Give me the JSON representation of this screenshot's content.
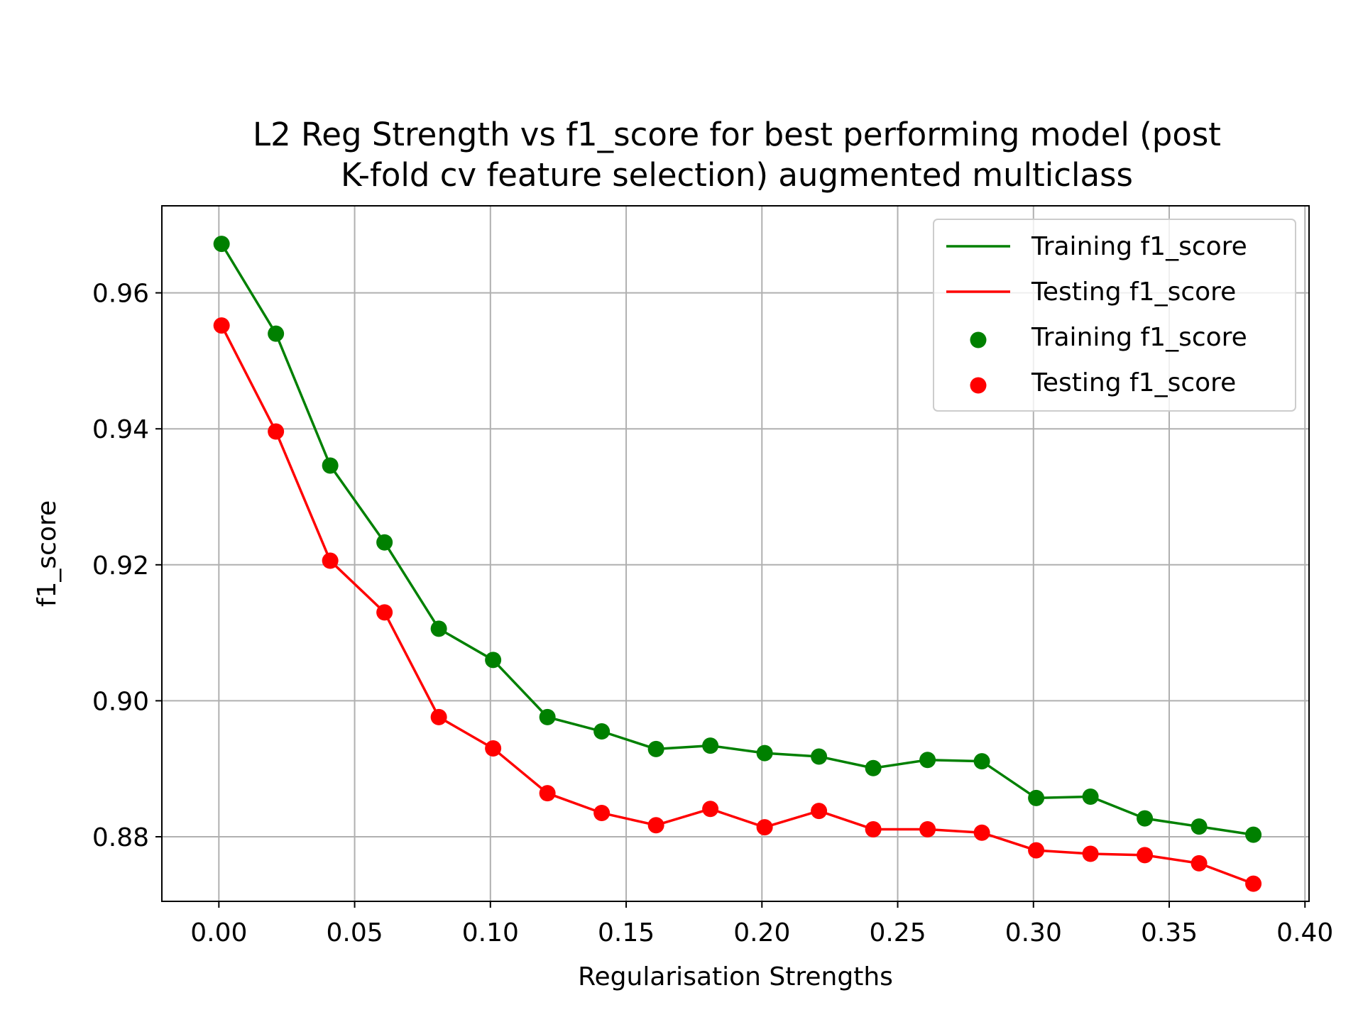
{
  "chart_data": {
    "type": "line",
    "title_lines": [
      "L2 Reg Strength vs f1_score for best performing model (post",
      "K-fold cv feature selection) augmented multiclass"
    ],
    "xlabel": "Regularisation Strengths",
    "ylabel": "f1_score",
    "xlim": [
      -0.021,
      0.4015
    ],
    "ylim": [
      0.8705,
      0.9728
    ],
    "x_ticks": [
      0.0,
      0.05,
      0.1,
      0.15,
      0.2,
      0.25,
      0.3,
      0.35,
      0.4
    ],
    "x_tick_labels": [
      "0.00",
      "0.05",
      "0.10",
      "0.15",
      "0.20",
      "0.25",
      "0.30",
      "0.35",
      "0.40"
    ],
    "y_ticks": [
      0.88,
      0.9,
      0.92,
      0.94,
      0.96
    ],
    "y_tick_labels": [
      "0.88",
      "0.90",
      "0.92",
      "0.94",
      "0.96"
    ],
    "grid": true,
    "legend_position": "top-right",
    "x": [
      0.001,
      0.021,
      0.041,
      0.061,
      0.081,
      0.101,
      0.121,
      0.141,
      0.161,
      0.181,
      0.201,
      0.221,
      0.241,
      0.261,
      0.281,
      0.301,
      0.321,
      0.341,
      0.361,
      0.381
    ],
    "series": [
      {
        "name": "Training f1_score",
        "color": "#008000",
        "values": [
          0.9672,
          0.954,
          0.9346,
          0.9233,
          0.9106,
          0.906,
          0.8976,
          0.8955,
          0.8929,
          0.8934,
          0.8923,
          0.8918,
          0.8901,
          0.8913,
          0.8911,
          0.8857,
          0.8859,
          0.8827,
          0.8815,
          0.8803
        ]
      },
      {
        "name": "Testing f1_score",
        "color": "#ff0000",
        "values": [
          0.9552,
          0.9396,
          0.9206,
          0.913,
          0.8976,
          0.893,
          0.8864,
          0.8835,
          0.8817,
          0.8841,
          0.8814,
          0.8838,
          0.8811,
          0.8811,
          0.8806,
          0.878,
          0.8775,
          0.8773,
          0.8761,
          0.8731
        ]
      }
    ],
    "legend_entries": [
      {
        "label": "Training f1_score",
        "kind": "line",
        "color": "#008000"
      },
      {
        "label": "Testing f1_score",
        "kind": "line",
        "color": "#ff0000"
      },
      {
        "label": "Training f1_score",
        "kind": "marker",
        "color": "#008000"
      },
      {
        "label": "Testing f1_score",
        "kind": "marker",
        "color": "#ff0000"
      }
    ]
  }
}
